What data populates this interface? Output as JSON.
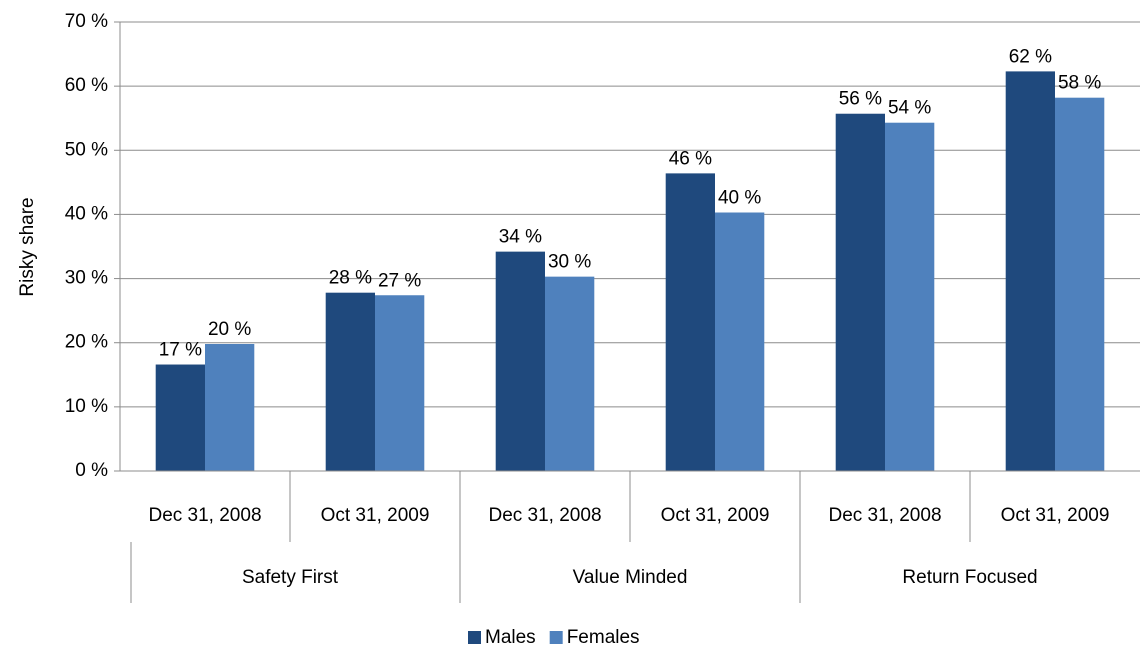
{
  "chart_data": {
    "type": "bar",
    "y_label": "Risky share",
    "groups": [
      {
        "name": "Safety First",
        "categories": [
          "Dec 31, 2008",
          "Oct 31, 2009"
        ]
      },
      {
        "name": "Value Minded",
        "categories": [
          "Dec 31, 2008",
          "Oct 31, 2009"
        ]
      },
      {
        "name": "Return Focused",
        "categories": [
          "Dec 31, 2008",
          "Oct 31, 2009"
        ]
      }
    ],
    "series": [
      {
        "name": "Males",
        "color": "#1f497d",
        "values": [
          16.6,
          27.8,
          34.2,
          46.4,
          55.7,
          62.3
        ],
        "value_labels": [
          "17 %",
          "28 %",
          "34 %",
          "46 %",
          "56 %",
          "62 %"
        ]
      },
      {
        "name": "Females",
        "color": "#4f81bd",
        "values": [
          19.8,
          27.4,
          30.3,
          40.3,
          54.3,
          58.2
        ],
        "value_labels": [
          "20 %",
          "27 %",
          "30 %",
          "40 %",
          "54 %",
          "58 %"
        ]
      }
    ],
    "ylim": [
      0,
      70
    ],
    "yticks": [
      {
        "value": 0,
        "label": "0 %"
      },
      {
        "value": 10,
        "label": "10 %"
      },
      {
        "value": 20,
        "label": "20 %"
      },
      {
        "value": 30,
        "label": "30 %"
      },
      {
        "value": 40,
        "label": "40 %"
      },
      {
        "value": 50,
        "label": "50 %"
      },
      {
        "value": 60,
        "label": "60 %"
      },
      {
        "value": 70,
        "label": "70 %"
      }
    ],
    "grid": true,
    "legend": "bottom"
  }
}
